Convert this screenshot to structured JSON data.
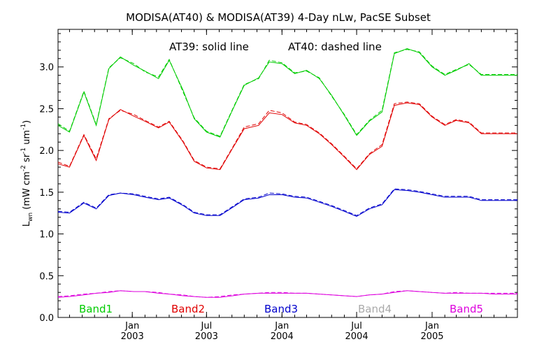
{
  "chart_data": {
    "type": "line",
    "title": "MODISA(AT40) & MODISA(AT39) 4-Day nLw, PacSE Subset",
    "ylabel": "L_wn (mW cm^-2 sr^-1 um^-1)",
    "ylabel_main": "L",
    "ylabel_sub": "wn",
    "ylabel_unit_open": "  (mW cm",
    "ylabel_sup1": "-2",
    "ylabel_unit_mid": " sr",
    "ylabel_sup2": "-1",
    "ylabel_unit_mid2": " um",
    "ylabel_sup3": "-1",
    "ylabel_unit_close": ")",
    "annotation_solid": "AT39: solid line",
    "annotation_dashed": "AT40: dashed line",
    "xlabel": "",
    "x_range": [
      "2002-07-04",
      "2005-07-28"
    ],
    "ylim": [
      0.0,
      3.45
    ],
    "y_ticks": [
      0.0,
      0.5,
      1.0,
      1.5,
      2.0,
      2.5,
      3.0
    ],
    "y_tick_labels": [
      "0.0",
      "0.5",
      "1.0",
      "1.5",
      "2.0",
      "2.5",
      "3.0"
    ],
    "x_ticks": [
      {
        "date": "2003-01-01",
        "month": "Jan",
        "year": "2003"
      },
      {
        "date": "2003-07-01",
        "month": "Jul",
        "year": "2003"
      },
      {
        "date": "2004-01-01",
        "month": "Jan",
        "year": "2004"
      },
      {
        "date": "2004-07-01",
        "month": "Jul",
        "year": "2004"
      },
      {
        "date": "2005-01-01",
        "month": "Jan",
        "year": "2005"
      }
    ],
    "x_dates": [
      "2002-07-04",
      "2002-08-01",
      "2002-09-05",
      "2002-10-05",
      "2002-11-05",
      "2002-12-03",
      "2003-01-05",
      "2003-02-01",
      "2003-03-06",
      "2003-04-01",
      "2003-05-05",
      "2003-06-01",
      "2003-07-01",
      "2003-08-03",
      "2003-09-03",
      "2003-10-01",
      "2003-11-05",
      "2003-12-01",
      "2004-01-01",
      "2004-02-01",
      "2004-03-01",
      "2004-04-01",
      "2004-05-01",
      "2004-06-01",
      "2004-07-01",
      "2004-08-01",
      "2004-09-01",
      "2004-10-01",
      "2004-11-01",
      "2004-12-01",
      "2005-01-01",
      "2005-02-01",
      "2005-03-01",
      "2005-04-01",
      "2005-05-01",
      "2005-06-01",
      "2005-07-01",
      "2005-07-28"
    ],
    "series": [
      {
        "name": "Band1",
        "color": "#00cc00",
        "solid": [
          2.3,
          2.22,
          2.7,
          2.3,
          2.98,
          3.12,
          3.02,
          2.95,
          2.86,
          3.08,
          2.72,
          2.38,
          2.22,
          2.16,
          2.49,
          2.78,
          2.87,
          3.06,
          3.04,
          2.92,
          2.96,
          2.86,
          2.66,
          2.42,
          2.18,
          2.35,
          2.46,
          3.16,
          3.22,
          3.17,
          3.0,
          2.9,
          2.96,
          3.04,
          2.9,
          2.9,
          2.9,
          2.9
        ],
        "dashed": [
          2.32,
          2.23,
          2.71,
          2.31,
          2.99,
          3.11,
          3.04,
          2.94,
          2.88,
          3.09,
          2.7,
          2.39,
          2.23,
          2.17,
          2.5,
          2.79,
          2.86,
          3.08,
          3.05,
          2.93,
          2.95,
          2.87,
          2.65,
          2.43,
          2.19,
          2.36,
          2.48,
          3.17,
          3.21,
          3.18,
          3.01,
          2.91,
          2.97,
          3.03,
          2.91,
          2.91,
          2.91,
          2.91
        ]
      },
      {
        "name": "Band2",
        "color": "#e00000",
        "solid": [
          1.84,
          1.8,
          2.18,
          1.88,
          2.37,
          2.49,
          2.41,
          2.35,
          2.27,
          2.34,
          2.1,
          1.87,
          1.79,
          1.77,
          2.03,
          2.26,
          2.3,
          2.45,
          2.43,
          2.33,
          2.3,
          2.2,
          2.07,
          1.92,
          1.77,
          1.95,
          2.05,
          2.54,
          2.57,
          2.55,
          2.4,
          2.3,
          2.36,
          2.33,
          2.2,
          2.2,
          2.2,
          2.2
        ],
        "dashed": [
          1.86,
          1.81,
          2.19,
          1.9,
          2.38,
          2.48,
          2.43,
          2.36,
          2.28,
          2.35,
          2.11,
          1.88,
          1.8,
          1.78,
          2.04,
          2.28,
          2.32,
          2.48,
          2.45,
          2.34,
          2.31,
          2.21,
          2.08,
          1.93,
          1.78,
          1.96,
          2.07,
          2.56,
          2.58,
          2.56,
          2.41,
          2.31,
          2.37,
          2.34,
          2.21,
          2.21,
          2.21,
          2.21
        ]
      },
      {
        "name": "Band3",
        "color": "#0000cc",
        "solid": [
          1.26,
          1.25,
          1.37,
          1.3,
          1.46,
          1.49,
          1.47,
          1.44,
          1.41,
          1.43,
          1.34,
          1.25,
          1.22,
          1.22,
          1.32,
          1.41,
          1.43,
          1.47,
          1.47,
          1.44,
          1.43,
          1.38,
          1.33,
          1.27,
          1.21,
          1.3,
          1.35,
          1.53,
          1.52,
          1.5,
          1.47,
          1.44,
          1.44,
          1.44,
          1.4,
          1.4,
          1.4,
          1.4
        ],
        "dashed": [
          1.27,
          1.26,
          1.38,
          1.31,
          1.47,
          1.49,
          1.48,
          1.45,
          1.42,
          1.44,
          1.35,
          1.26,
          1.23,
          1.23,
          1.33,
          1.42,
          1.44,
          1.49,
          1.48,
          1.45,
          1.44,
          1.39,
          1.34,
          1.28,
          1.22,
          1.31,
          1.36,
          1.54,
          1.53,
          1.51,
          1.48,
          1.45,
          1.45,
          1.45,
          1.41,
          1.41,
          1.41,
          1.41
        ]
      },
      {
        "name": "Band4",
        "color": "#aaaaaa",
        "solid": [],
        "dashed": []
      },
      {
        "name": "Band5",
        "color": "#dd00dd",
        "solid": [
          0.24,
          0.25,
          0.27,
          0.29,
          0.3,
          0.32,
          0.31,
          0.31,
          0.29,
          0.28,
          0.26,
          0.25,
          0.24,
          0.24,
          0.26,
          0.28,
          0.29,
          0.29,
          0.29,
          0.29,
          0.29,
          0.28,
          0.27,
          0.26,
          0.25,
          0.27,
          0.28,
          0.3,
          0.32,
          0.31,
          0.3,
          0.29,
          0.29,
          0.29,
          0.29,
          0.28,
          0.28,
          0.28
        ],
        "dashed": [
          0.25,
          0.26,
          0.28,
          0.29,
          0.31,
          0.32,
          0.31,
          0.31,
          0.3,
          0.28,
          0.27,
          0.25,
          0.24,
          0.25,
          0.27,
          0.28,
          0.29,
          0.3,
          0.3,
          0.29,
          0.29,
          0.28,
          0.27,
          0.26,
          0.25,
          0.27,
          0.28,
          0.31,
          0.32,
          0.31,
          0.3,
          0.29,
          0.3,
          0.29,
          0.29,
          0.29,
          0.29,
          0.29
        ]
      }
    ]
  }
}
